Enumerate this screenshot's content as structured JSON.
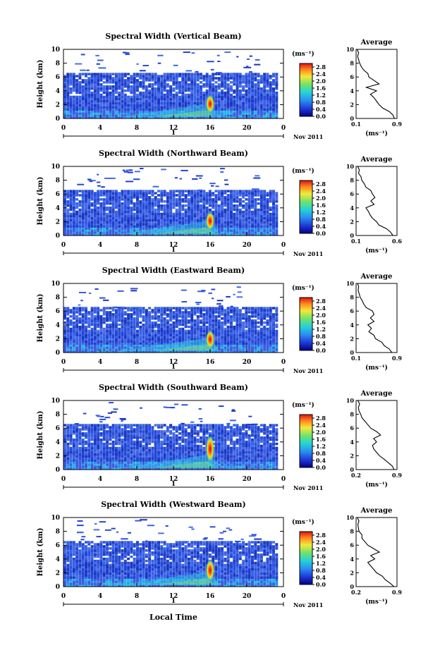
{
  "page": {
    "xlabel": "Local Time"
  },
  "chart_data": [
    {
      "type": "heatmap",
      "title": "Spectral Width (Vertical Beam)",
      "ylabel": "Height (km)",
      "x_ticks": [
        "0",
        "4",
        "8",
        "12",
        "16",
        "20",
        "0"
      ],
      "y_ticks": [
        "0",
        "2",
        "4",
        "6",
        "8",
        "10"
      ],
      "xlim": [
        0,
        24
      ],
      "ylim": [
        0,
        10
      ],
      "date_marker": "1",
      "month_label": "Nov 2011",
      "colorbar": {
        "unit_label": "(ms⁻¹)",
        "ticks": [
          "0.0",
          "0.4",
          "0.8",
          "1.2",
          "1.6",
          "2.0",
          "2.4",
          "2.8"
        ],
        "range": [
          0,
          3.0
        ]
      },
      "hotspot": {
        "time": 16,
        "height_low": 1.2,
        "height_high": 3.0,
        "value": 3.0
      },
      "average": {
        "title": "Average",
        "unit_label": "(ms⁻¹)",
        "x_ticks": [
          "0.1",
          "0.9"
        ],
        "xlim": [
          0.1,
          0.9
        ],
        "heights": [
          0,
          0.5,
          1,
          1.5,
          2,
          2.5,
          3,
          3.5,
          4,
          4.5,
          5,
          5.5,
          6,
          6.5,
          7,
          7.5,
          8,
          8.5,
          9,
          9.5,
          10
        ],
        "values": [
          0.85,
          0.82,
          0.75,
          0.62,
          0.55,
          0.5,
          0.45,
          0.38,
          0.5,
          0.3,
          0.55,
          0.45,
          0.35,
          0.33,
          0.25,
          0.2,
          0.17,
          0.15,
          0.13,
          0.15,
          0.12
        ]
      }
    },
    {
      "type": "heatmap",
      "title": "Spectral Width (Northward Beam)",
      "ylabel": "Height (km)",
      "x_ticks": [
        "0",
        "4",
        "8",
        "12",
        "16",
        "20",
        "0"
      ],
      "y_ticks": [
        "0",
        "2",
        "4",
        "6",
        "8",
        "10"
      ],
      "xlim": [
        0,
        24
      ],
      "ylim": [
        0,
        10
      ],
      "date_marker": "1",
      "month_label": "Nov 2011",
      "colorbar": {
        "unit_label": "(ms⁻¹)",
        "ticks": [
          "0.0",
          "0.4",
          "0.8",
          "1.2",
          "1.6",
          "2.0",
          "2.4",
          "2.8"
        ],
        "range": [
          0,
          3.0
        ]
      },
      "hotspot": {
        "time": 16,
        "height_low": 1.2,
        "height_high": 3.0,
        "value": 2.7
      },
      "average": {
        "title": "Average",
        "unit_label": "(ms⁻¹)",
        "x_ticks": [
          "0.1",
          "0.6"
        ],
        "xlim": [
          0.1,
          0.6
        ],
        "heights": [
          0,
          0.5,
          1,
          1.5,
          2,
          2.5,
          3,
          3.5,
          4,
          4.5,
          5,
          5.5,
          6,
          6.5,
          7,
          7.5,
          8,
          8.5,
          9,
          9.5,
          10
        ],
        "values": [
          0.55,
          0.52,
          0.47,
          0.38,
          0.35,
          0.3,
          0.27,
          0.25,
          0.22,
          0.32,
          0.28,
          0.33,
          0.3,
          0.28,
          0.22,
          0.2,
          0.17,
          0.16,
          0.13,
          0.14,
          0.12
        ]
      }
    },
    {
      "type": "heatmap",
      "title": "Spectral Width (Eastward Beam)",
      "ylabel": "Height (km)",
      "x_ticks": [
        "0",
        "4",
        "8",
        "12",
        "16",
        "20",
        "0"
      ],
      "y_ticks": [
        "0",
        "2",
        "4",
        "6",
        "8",
        "10"
      ],
      "xlim": [
        0,
        24
      ],
      "ylim": [
        0,
        10
      ],
      "date_marker": "1",
      "month_label": "Nov 2011",
      "colorbar": {
        "unit_label": "(ms⁻¹)",
        "ticks": [
          "0.0",
          "0.4",
          "0.8",
          "1.2",
          "1.6",
          "2.0",
          "2.4",
          "2.8"
        ],
        "range": [
          0,
          3.0
        ]
      },
      "hotspot": {
        "time": 16,
        "height_low": 1.0,
        "height_high": 2.8,
        "value": 2.6
      },
      "average": {
        "title": "Average",
        "unit_label": "(ms⁻¹)",
        "x_ticks": [
          "0.1",
          "0.9"
        ],
        "xlim": [
          0.1,
          0.9
        ],
        "heights": [
          0,
          0.5,
          1,
          1.5,
          2,
          2.5,
          3,
          3.5,
          4,
          4.5,
          5,
          5.5,
          6,
          6.5,
          7,
          7.5,
          8,
          8.5,
          9,
          9.5,
          10
        ],
        "values": [
          0.8,
          0.75,
          0.65,
          0.6,
          0.48,
          0.45,
          0.35,
          0.4,
          0.33,
          0.45,
          0.38,
          0.45,
          0.42,
          0.3,
          0.25,
          0.22,
          0.18,
          0.16,
          0.14,
          0.15,
          0.13
        ]
      }
    },
    {
      "type": "heatmap",
      "title": "Spectral Width (Southward Beam)",
      "ylabel": "Height (km)",
      "x_ticks": [
        "0",
        "4",
        "8",
        "12",
        "16",
        "20",
        "0"
      ],
      "y_ticks": [
        "0",
        "2",
        "4",
        "6",
        "8",
        "10"
      ],
      "xlim": [
        0,
        24
      ],
      "ylim": [
        0,
        10
      ],
      "date_marker": "1",
      "month_label": "Nov 2011",
      "colorbar": {
        "unit_label": "(ms⁻¹)",
        "ticks": [
          "0.0",
          "0.4",
          "0.8",
          "1.2",
          "1.6",
          "2.0",
          "2.4",
          "2.8"
        ],
        "range": [
          0,
          3.0
        ]
      },
      "hotspot": {
        "time": 16,
        "height_low": 1.5,
        "height_high": 4.5,
        "value": 3.0
      },
      "average": {
        "title": "Average",
        "unit_label": "(ms⁻¹)",
        "x_ticks": [
          "0.2",
          "0.9"
        ],
        "xlim": [
          0.2,
          0.9
        ],
        "heights": [
          0,
          0.5,
          1,
          1.5,
          2,
          2.5,
          3,
          3.5,
          4,
          4.5,
          5,
          5.5,
          6,
          6.5,
          7,
          7.5,
          8,
          8.5,
          9,
          9.5,
          10
        ],
        "values": [
          0.85,
          0.82,
          0.75,
          0.68,
          0.6,
          0.55,
          0.5,
          0.48,
          0.55,
          0.5,
          0.62,
          0.55,
          0.45,
          0.4,
          0.35,
          0.3,
          0.28,
          0.25,
          0.24,
          0.26,
          0.23
        ]
      }
    },
    {
      "type": "heatmap",
      "title": "Spectral Width (Westward Beam)",
      "ylabel": "Height (km)",
      "x_ticks": [
        "0",
        "4",
        "8",
        "12",
        "16",
        "20",
        "0"
      ],
      "y_ticks": [
        "0",
        "2",
        "4",
        "6",
        "8",
        "10"
      ],
      "xlim": [
        0,
        24
      ],
      "ylim": [
        0,
        10
      ],
      "date_marker": "1",
      "month_label": "Nov 2011",
      "colorbar": {
        "unit_label": "(ms⁻¹)",
        "ticks": [
          "0.0",
          "0.4",
          "0.8",
          "1.2",
          "1.6",
          "2.0",
          "2.4",
          "2.8"
        ],
        "range": [
          0,
          3.0
        ]
      },
      "hotspot": {
        "time": 16,
        "height_low": 1.2,
        "height_high": 3.5,
        "value": 2.8
      },
      "average": {
        "title": "Average",
        "unit_label": "(ms⁻¹)",
        "x_ticks": [
          "0.2",
          "0.9"
        ],
        "xlim": [
          0.2,
          0.9
        ],
        "heights": [
          0,
          0.5,
          1,
          1.5,
          2,
          2.5,
          3,
          3.5,
          4,
          4.5,
          5,
          5.5,
          6,
          6.5,
          7,
          7.5,
          8,
          8.5,
          9,
          9.5,
          10
        ],
        "values": [
          0.85,
          0.78,
          0.7,
          0.65,
          0.55,
          0.5,
          0.45,
          0.4,
          0.52,
          0.45,
          0.6,
          0.5,
          0.4,
          0.35,
          0.3,
          0.3,
          0.25,
          0.24,
          0.23,
          0.25,
          0.22
        ]
      }
    }
  ]
}
